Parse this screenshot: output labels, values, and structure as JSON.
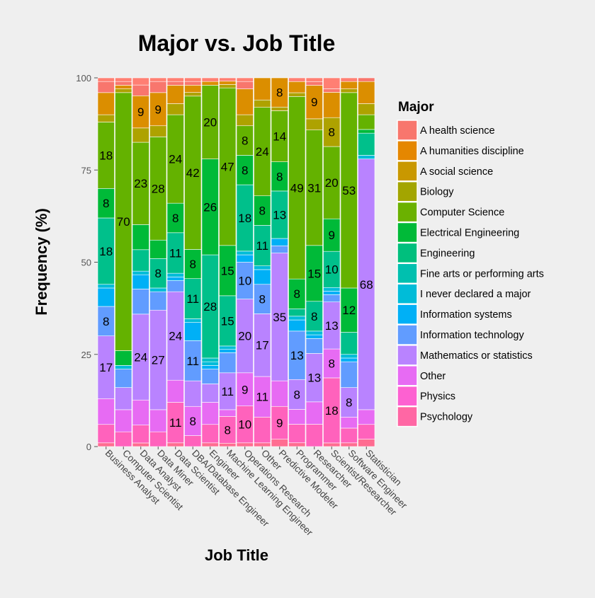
{
  "chart_data": {
    "type": "bar",
    "stacked": true,
    "percent": true,
    "title": "Major vs. Job Title",
    "xlabel": "Job Title",
    "ylabel": "Frequency (%)",
    "ylim": [
      0,
      100
    ],
    "yticks": [
      0,
      25,
      50,
      75,
      100
    ],
    "legend_title": "Major",
    "legend_position": "right",
    "categories": [
      "Business Analyst",
      "Computer Scientist",
      "Data Analyst",
      "Data Miner",
      "Data Scientist",
      "DBA/Database Engineer",
      "Engineer",
      "Machine Learning Engineer",
      "Operations Research",
      "Other",
      "Predictive Modeler",
      "Programmer",
      "Researcher",
      "Scientist/Researcher",
      "Software Engineer",
      "Statistician"
    ],
    "series": [
      {
        "name": "Psychology",
        "color": "#FF6C91",
        "values": [
          1,
          0,
          1,
          0,
          1,
          0,
          1,
          1,
          1,
          1,
          2,
          1,
          0,
          1,
          1,
          2
        ]
      },
      {
        "name": "Physics",
        "color": "#FF62BC",
        "values": [
          5,
          4,
          5,
          4,
          11,
          3,
          5,
          8,
          10,
          7,
          9,
          5,
          6,
          18,
          4,
          4
        ]
      },
      {
        "name": "Other",
        "color": "#E76BF3",
        "values": [
          7,
          6,
          7,
          6,
          6,
          8,
          6,
          2,
          9,
          11,
          7,
          4,
          6,
          8,
          3,
          4
        ]
      },
      {
        "name": "Mathematics or statistics",
        "color": "#B983FF",
        "values": [
          17,
          6,
          24,
          27,
          24,
          7,
          5,
          11,
          20,
          17,
          35,
          8,
          13,
          13,
          8,
          68
        ]
      },
      {
        "name": "Information technology",
        "color": "#619CFF",
        "values": [
          8,
          5,
          7,
          5,
          3,
          11,
          4,
          6,
          10,
          8,
          2,
          13,
          4,
          2,
          7,
          0
        ]
      },
      {
        "name": "Information systems",
        "color": "#00B0F6",
        "values": [
          5,
          0,
          4,
          0,
          1,
          5,
          1,
          1,
          2,
          4,
          2,
          3,
          1,
          1,
          1,
          0
        ]
      },
      {
        "name": "I never declared a major",
        "color": "#00BCD8",
        "values": [
          1,
          1,
          1,
          1,
          1,
          1,
          1,
          1,
          1,
          1,
          0,
          1,
          1,
          1,
          1,
          1
        ]
      },
      {
        "name": "Fine arts or performing arts",
        "color": "#00BFC4",
        "values": [
          0,
          0,
          0,
          0,
          0,
          0,
          1,
          0,
          0,
          0,
          0,
          0,
          0,
          0,
          0,
          0
        ]
      },
      {
        "name": "Engineering",
        "color": "#00C08B",
        "values": [
          18,
          0,
          6,
          8,
          11,
          11,
          28,
          15,
          18,
          11,
          13,
          2,
          8,
          10,
          6,
          6
        ]
      },
      {
        "name": "Electrical Engineering",
        "color": "#00BA38",
        "values": [
          8,
          4,
          7,
          5,
          8,
          8,
          26,
          15,
          8,
          8,
          8,
          8,
          15,
          9,
          12,
          1
        ]
      },
      {
        "name": "Computer Science",
        "color": "#64B200",
        "values": [
          18,
          70,
          23,
          28,
          24,
          42,
          20,
          47,
          8,
          24,
          14,
          49,
          31,
          20,
          53,
          4
        ]
      },
      {
        "name": "Biology",
        "color": "#AEA200",
        "values": [
          2,
          1,
          4,
          3,
          3,
          1,
          0,
          1,
          3,
          2,
          1,
          1,
          3,
          8,
          1,
          3
        ]
      },
      {
        "name": "A social science",
        "color": "#DB8E00",
        "values": [
          6,
          1,
          9,
          9,
          5,
          2,
          1,
          1,
          7,
          6,
          8,
          3,
          9,
          7,
          2,
          6
        ]
      },
      {
        "name": "A humanities discipline",
        "color": "#F8766D",
        "values": [
          3,
          1,
          3,
          3,
          1,
          1,
          0,
          0,
          2,
          0,
          0,
          0,
          1,
          1,
          0,
          1
        ]
      },
      {
        "name": "A health science",
        "color": "#FF7F73",
        "values": [
          1,
          1,
          2,
          1,
          1,
          1,
          1,
          1,
          1,
          0,
          0,
          1,
          1,
          3,
          1,
          0
        ]
      }
    ],
    "data_labels_note": "labels shown on segments >= 8%",
    "legend_entries": [
      {
        "name": "A health science",
        "color": "#F8766D"
      },
      {
        "name": "A humanities discipline",
        "color": "#E58700"
      },
      {
        "name": "A social science",
        "color": "#C99800"
      },
      {
        "name": "Biology",
        "color": "#A3A500"
      },
      {
        "name": "Computer Science",
        "color": "#6BB100"
      },
      {
        "name": "Electrical Engineering",
        "color": "#00BA38"
      },
      {
        "name": "Engineering",
        "color": "#00BF7D"
      },
      {
        "name": "Fine arts or performing arts",
        "color": "#00C0AF"
      },
      {
        "name": "I never declared a major",
        "color": "#00BCD8"
      },
      {
        "name": "Information systems",
        "color": "#00B0F6"
      },
      {
        "name": "Information technology",
        "color": "#619CFF"
      },
      {
        "name": "Mathematics or statistics",
        "color": "#B983FF"
      },
      {
        "name": "Other",
        "color": "#E76BF3"
      },
      {
        "name": "Physics",
        "color": "#FD61D1"
      },
      {
        "name": "Psychology",
        "color": "#FF67A4"
      }
    ]
  }
}
